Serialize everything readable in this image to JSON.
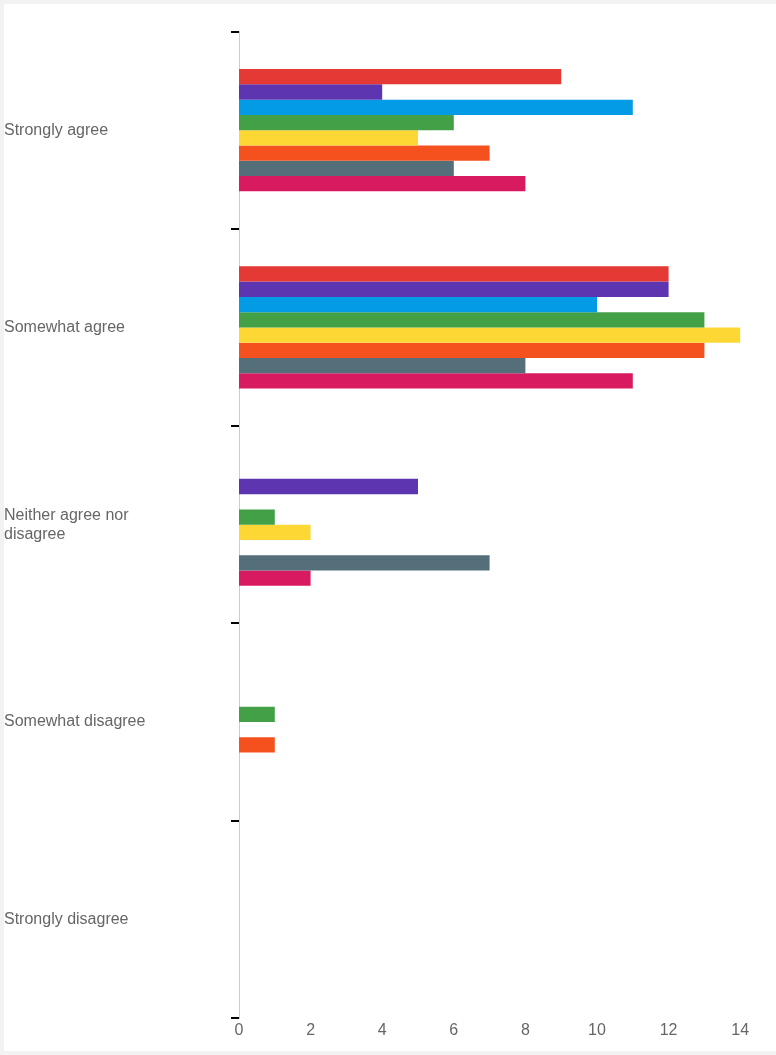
{
  "chart_data": {
    "type": "bar",
    "orientation": "horizontal",
    "categories": [
      "Strongly agree",
      "Somewhat agree",
      "Neither agree nor disagree",
      "Somewhat disagree",
      "Strongly disagree"
    ],
    "series": [
      {
        "color": "#e53935",
        "values": [
          9,
          12,
          0,
          0,
          0
        ]
      },
      {
        "color": "#5e35b1",
        "values": [
          4,
          12,
          5,
          0,
          0
        ]
      },
      {
        "color": "#039be5",
        "values": [
          11,
          10,
          0,
          0,
          0
        ]
      },
      {
        "color": "#43a047",
        "values": [
          6,
          13,
          1,
          1,
          0
        ]
      },
      {
        "color": "#fdd835",
        "values": [
          5,
          14,
          2,
          0,
          0
        ]
      },
      {
        "color": "#f4511e",
        "values": [
          7,
          13,
          0,
          1,
          0
        ]
      },
      {
        "color": "#546e7a",
        "values": [
          6,
          8,
          7,
          0,
          0
        ]
      },
      {
        "color": "#d81b60",
        "values": [
          8,
          11,
          2,
          0,
          0
        ]
      }
    ],
    "xlim": [
      0,
      15
    ],
    "xticks": [
      0,
      2,
      4,
      6,
      8,
      10,
      12,
      14
    ],
    "grid": false,
    "legend": false
  }
}
